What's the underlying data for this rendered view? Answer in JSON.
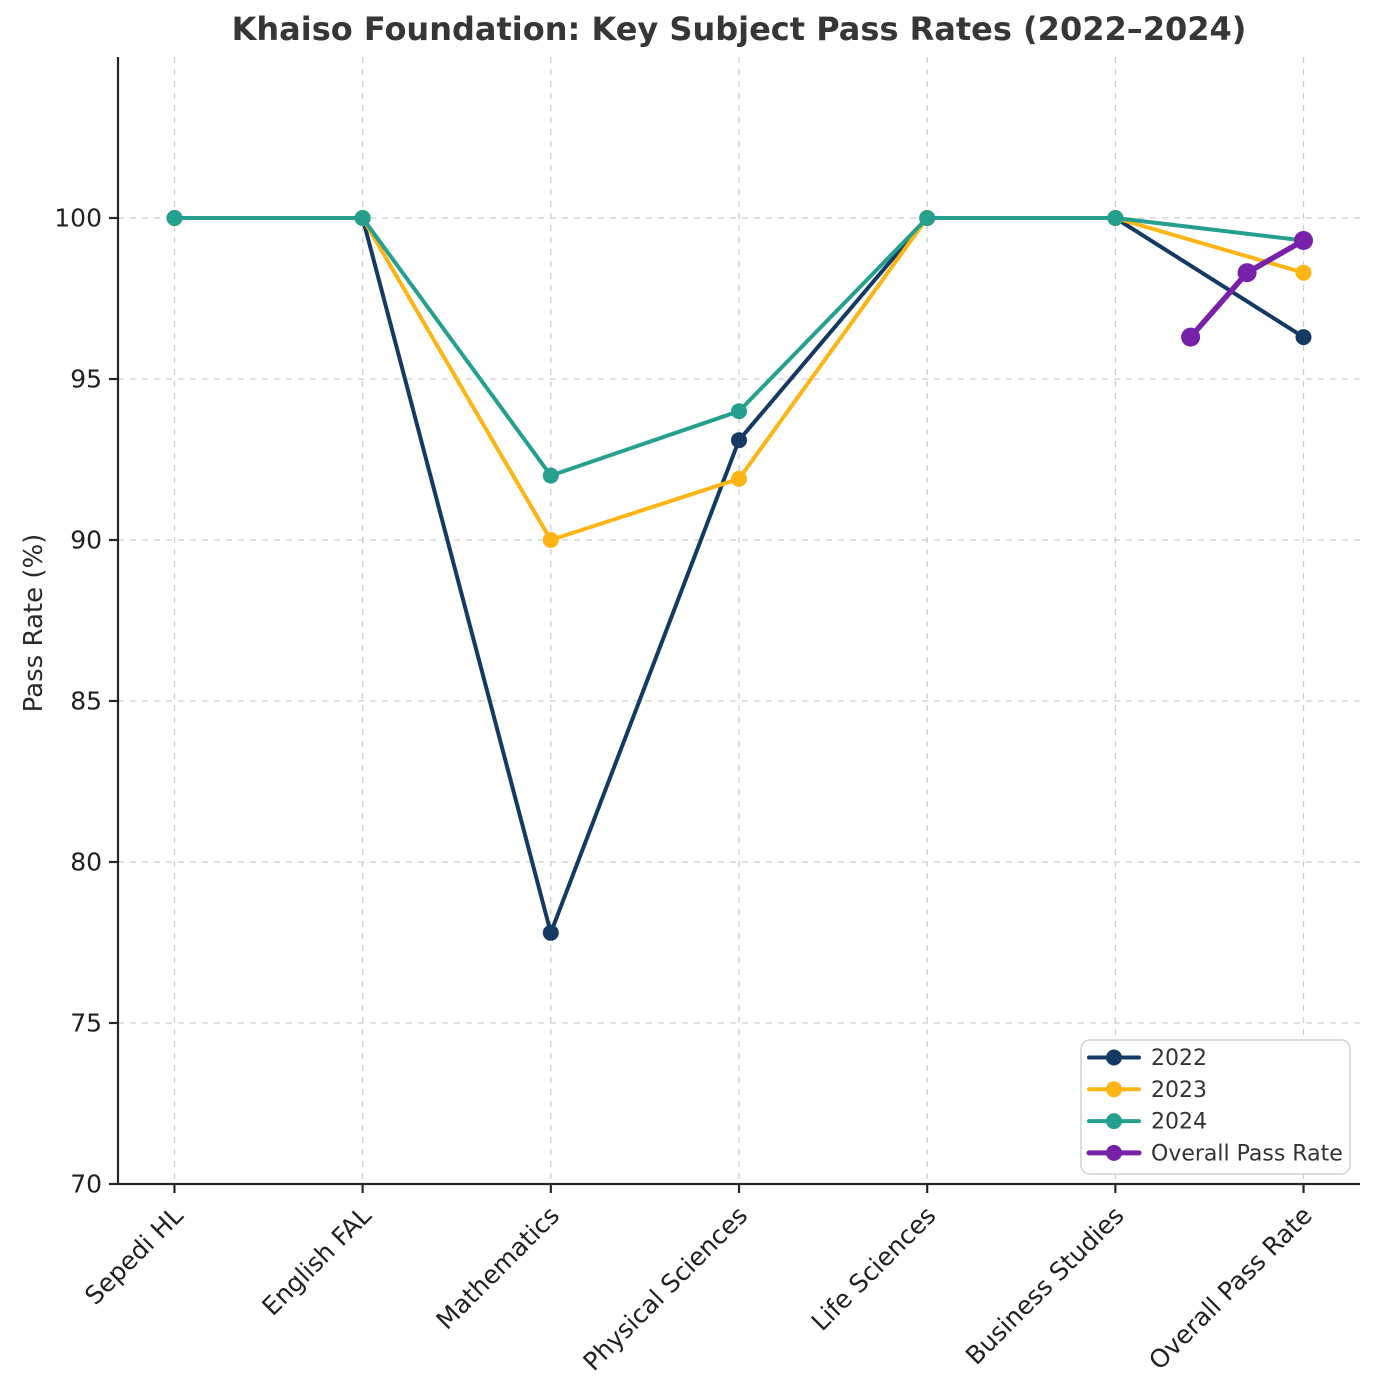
{
  "chart_data": {
    "type": "line",
    "title": "Khaiso Foundation: Key Subject Pass Rates (2022–2024)",
    "xlabel": "",
    "ylabel": "Pass Rate (%)",
    "categories": [
      "Sepedi HL",
      "English FAL",
      "Mathematics",
      "Physical Sciences",
      "Life Sciences",
      "Business Studies",
      "Overall Pass Rate"
    ],
    "ylim": [
      70,
      105
    ],
    "yticks": [
      70,
      75,
      80,
      85,
      90,
      95,
      100
    ],
    "grid": true,
    "grid_style": "dashed",
    "legend_position": "lower right",
    "series": [
      {
        "name": "2022",
        "color": "#143a63",
        "linewidth": 4,
        "markersize": 8,
        "values": [
          100,
          100,
          77.8,
          93.1,
          100,
          100,
          96.3
        ]
      },
      {
        "name": "2023",
        "color": "#fdb515",
        "linewidth": 4,
        "markersize": 8,
        "values": [
          100,
          100,
          90.0,
          91.9,
          100,
          100,
          98.3
        ]
      },
      {
        "name": "2024",
        "color": "#26a08e",
        "linewidth": 4,
        "markersize": 8,
        "values": [
          100,
          100,
          92.0,
          94.0,
          100,
          100,
          99.3
        ]
      },
      {
        "name": "Overall Pass Rate",
        "color": "#7621a8",
        "linewidth": 5.5,
        "markersize": 9.5,
        "x": [
          5.4,
          5.7,
          6.0
        ],
        "values": [
          96.3,
          98.3,
          99.3
        ]
      }
    ]
  }
}
